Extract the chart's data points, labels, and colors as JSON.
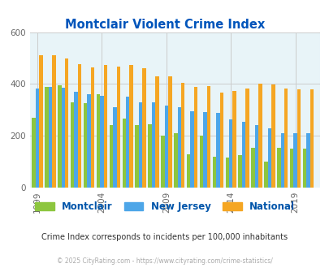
{
  "title": "Montclair Violent Crime Index",
  "subtitle": "Crime Index corresponds to incidents per 100,000 inhabitants",
  "footer": "© 2025 CityRating.com - https://www.cityrating.com/crime-statistics/",
  "years": [
    1999,
    2000,
    2001,
    2002,
    2003,
    2004,
    2005,
    2006,
    2007,
    2008,
    2009,
    2010,
    2011,
    2012,
    2013,
    2014,
    2015,
    2016,
    2017,
    2018,
    2019,
    2020
  ],
  "montclair": [
    270,
    390,
    395,
    330,
    325,
    360,
    240,
    265,
    240,
    245,
    200,
    210,
    130,
    200,
    120,
    115,
    125,
    155,
    100,
    155,
    150,
    150
  ],
  "new_jersey": [
    383,
    390,
    385,
    370,
    362,
    355,
    310,
    350,
    330,
    330,
    318,
    310,
    295,
    292,
    288,
    263,
    255,
    242,
    228,
    210,
    210,
    210
  ],
  "national": [
    510,
    510,
    500,
    477,
    465,
    472,
    466,
    473,
    462,
    428,
    430,
    405,
    390,
    392,
    367,
    374,
    383,
    400,
    398,
    383,
    380,
    379
  ],
  "ylim": [
    0,
    600
  ],
  "yticks": [
    0,
    200,
    400,
    600
  ],
  "xtick_years": [
    1999,
    2004,
    2009,
    2014,
    2019
  ],
  "bar_width": 0.28,
  "colors": {
    "montclair": "#8dc63f",
    "new_jersey": "#4da6e8",
    "national": "#f5a623",
    "background_plot": "#e8f4f8",
    "background_fig": "#ffffff",
    "title": "#0055bb",
    "grid": "#cccccc",
    "subtitle_color": "#333333",
    "footer_color": "#aaaaaa",
    "legend_text": "#0055aa",
    "tick_color": "#666666"
  },
  "legend_labels": [
    "Montclair",
    "New Jersey",
    "National"
  ]
}
